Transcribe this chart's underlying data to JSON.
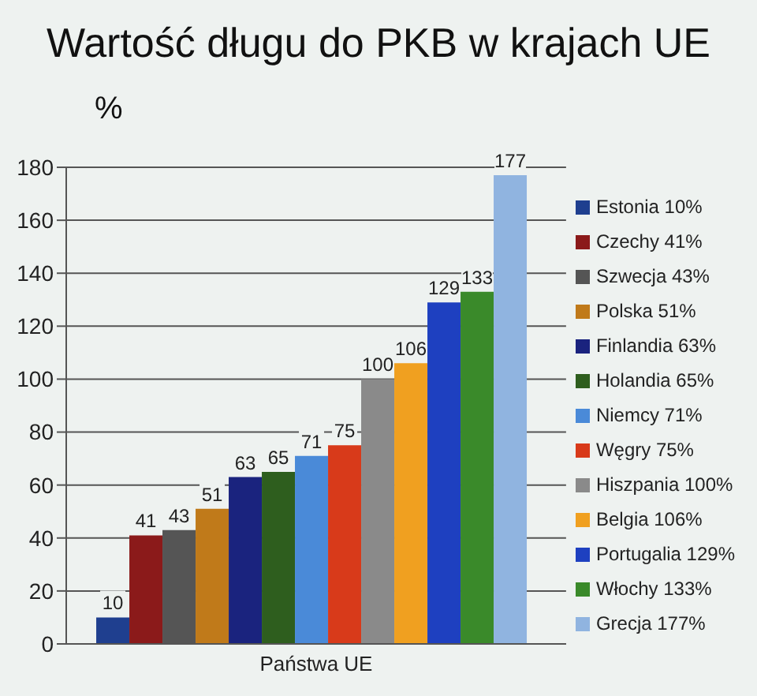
{
  "chart_data": {
    "type": "bar",
    "title": "Wartość długu do PKB w krajach UE",
    "ylabel": "%",
    "categories": [
      "Państwa UE"
    ],
    "series": [
      {
        "name": "Estonia 10%",
        "color": "#1f3f8f",
        "values": [
          10
        ]
      },
      {
        "name": "Czechy 41%",
        "color": "#8b1a1a",
        "values": [
          41
        ]
      },
      {
        "name": "Szwecja 43%",
        "color": "#555555",
        "values": [
          43
        ]
      },
      {
        "name": "Polska 51%",
        "color": "#c07a1a",
        "values": [
          51
        ]
      },
      {
        "name": "Finlandia 63%",
        "color": "#1a237e",
        "values": [
          63
        ]
      },
      {
        "name": "Holandia 65%",
        "color": "#2e5e1e",
        "values": [
          65
        ]
      },
      {
        "name": "Niemcy 71%",
        "color": "#4a8ad8",
        "values": [
          71
        ]
      },
      {
        "name": "Węgry 75%",
        "color": "#d83a1a",
        "values": [
          75
        ]
      },
      {
        "name": "Hiszpania 100%",
        "color": "#8a8a8a",
        "values": [
          100
        ]
      },
      {
        "name": "Belgia 106%",
        "color": "#f0a020",
        "values": [
          106
        ]
      },
      {
        "name": "Portugalia 129%",
        "color": "#1e40c0",
        "values": [
          129
        ]
      },
      {
        "name": "Włochy 133%",
        "color": "#3a8a2a",
        "values": [
          133
        ]
      },
      {
        "name": "Grecja 177%",
        "color": "#90b4e0",
        "values": [
          177
        ]
      }
    ],
    "ylim": [
      0,
      180
    ],
    "yticks": [
      0,
      20,
      40,
      60,
      80,
      100,
      120,
      140,
      160,
      180
    ],
    "grid": "y",
    "legend": "right",
    "data_labels": true
  }
}
